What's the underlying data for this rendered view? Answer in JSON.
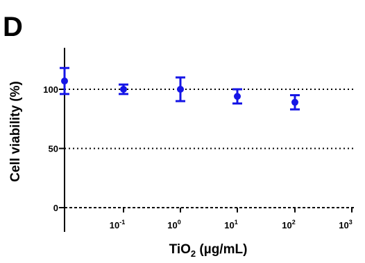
{
  "panel_label": "D",
  "colors": {
    "series": "#1515e6",
    "axis": "#000000",
    "reference": "#000000"
  },
  "chart_data": {
    "type": "scatter",
    "title": "",
    "xlabel": "TiO2 (µg/mL)",
    "xlabel_parts": {
      "base": "TiO",
      "sub": "2",
      "rest": " (µg/mL)"
    },
    "ylabel": "Cell viability (%)",
    "x_scale": "log",
    "x_ticks": [
      {
        "base": "10",
        "exp": "-1"
      },
      {
        "base": "10",
        "exp": "0"
      },
      {
        "base": "10",
        "exp": "1"
      },
      {
        "base": "10",
        "exp": "2"
      },
      {
        "base": "10",
        "exp": "3"
      }
    ],
    "y_ticks": [
      0,
      50,
      100
    ],
    "ylim": [
      0,
      135
    ],
    "reference_lines": [
      100,
      50
    ],
    "grid": false,
    "series": [
      {
        "points": [
          {
            "x": "0",
            "y": 107,
            "err": 11
          },
          {
            "x": "10^-1",
            "y": 100,
            "err": 4
          },
          {
            "x": "10^0",
            "y": 100,
            "err": 10
          },
          {
            "x": "10^1",
            "y": 94,
            "err": 6
          },
          {
            "x": "10^2",
            "y": 89,
            "err": 6
          }
        ]
      }
    ]
  }
}
